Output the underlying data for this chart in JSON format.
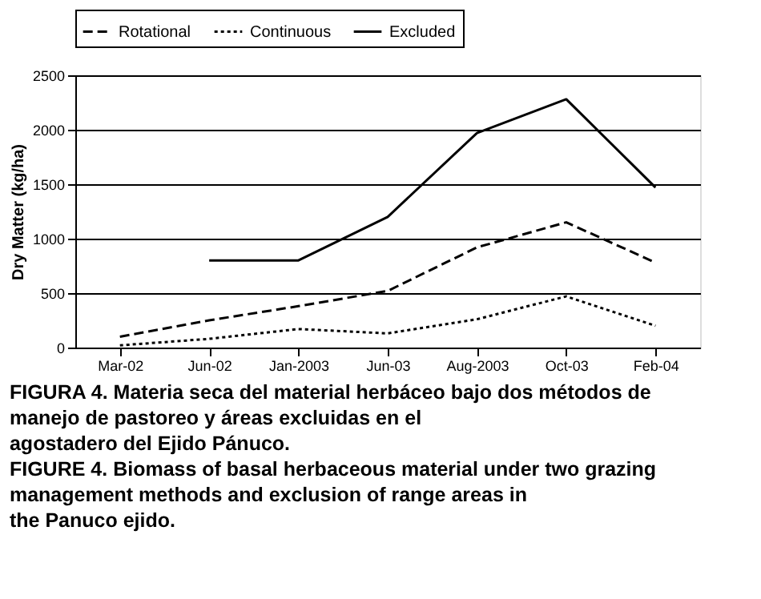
{
  "chart_data": {
    "type": "line",
    "ylabel": "Dry Matter (kg/ha)",
    "categories": [
      "Mar-02",
      "Jun-02",
      "Jan-2003",
      "Jun-03",
      "Aug-2003",
      "Oct-03",
      "Feb-04"
    ],
    "series": [
      {
        "name": "Rotational",
        "color": "#000000",
        "line_style": "dashed",
        "values": [
          100,
          250,
          380,
          520,
          920,
          1150,
          780
        ]
      },
      {
        "name": "Continuous",
        "color": "#000000",
        "line_style": "dotted",
        "values": [
          20,
          80,
          170,
          130,
          260,
          470,
          200
        ]
      },
      {
        "name": "Excluded",
        "color": "#000000",
        "line_style": "solid",
        "values": [
          null,
          800,
          800,
          1200,
          1970,
          2280,
          1470
        ]
      }
    ],
    "ylim": [
      0,
      2500
    ],
    "yticks": [
      0,
      500,
      1000,
      1500,
      2000,
      2500
    ],
    "grid": "y",
    "legend": "top",
    "marker": "none",
    "annotations": [
      "FIGURA 4. Materia seca del material herbáceo bajo dos métodos de manejo de pastoreo y áreas excluidas en el agostadero del Ejido Pánuco.",
      "FIGURE 4. Biomass of basal herbaceous material under two grazing management methods and exclusion of range areas in the Panuco ejido."
    ]
  }
}
